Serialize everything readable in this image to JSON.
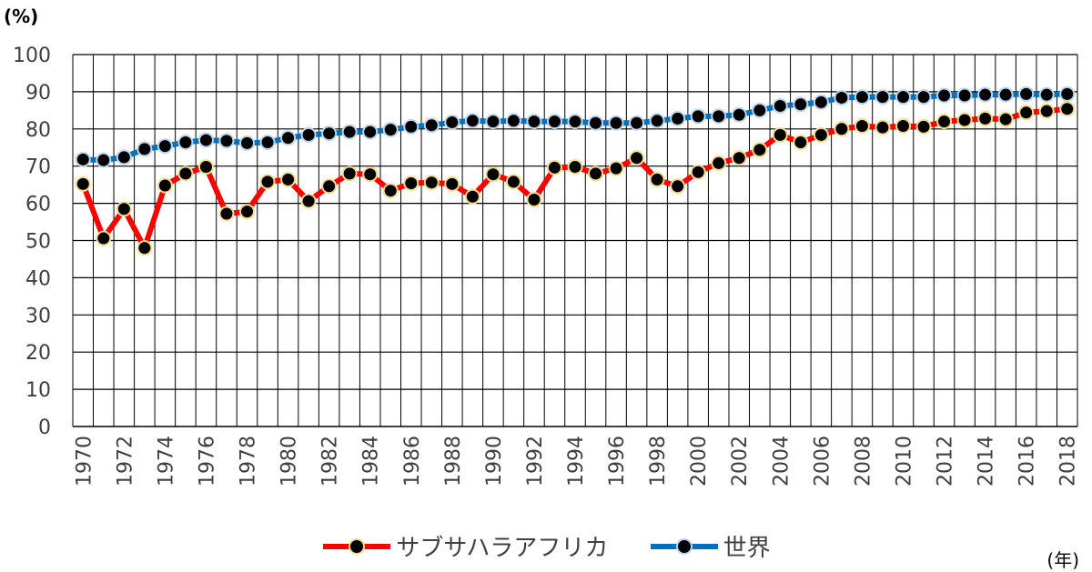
{
  "chart_data": {
    "type": "line",
    "ylabel": "(%)",
    "xlabel": "(年)",
    "ylim": [
      0,
      100
    ],
    "yticks": [
      0,
      10,
      20,
      30,
      40,
      50,
      60,
      70,
      80,
      90,
      100
    ],
    "x": [
      1970,
      1971,
      1972,
      1973,
      1974,
      1975,
      1976,
      1977,
      1978,
      1979,
      1980,
      1981,
      1982,
      1983,
      1984,
      1985,
      1986,
      1987,
      1988,
      1989,
      1990,
      1991,
      1992,
      1993,
      1994,
      1995,
      1996,
      1997,
      1998,
      1999,
      2000,
      2001,
      2002,
      2003,
      2004,
      2005,
      2006,
      2007,
      2008,
      2009,
      2010,
      2011,
      2012,
      2013,
      2014,
      2015,
      2016,
      2017,
      2018
    ],
    "xtick_labels": [
      "1970",
      "1972",
      "1974",
      "1976",
      "1978",
      "1980",
      "1982",
      "1984",
      "1986",
      "1988",
      "1990",
      "1992",
      "1994",
      "1996",
      "1998",
      "2000",
      "2002",
      "2004",
      "2006",
      "2008",
      "2010",
      "2012",
      "2014",
      "2016",
      "2018"
    ],
    "grid": true,
    "legend_position": "bottom",
    "series": [
      {
        "name": "サブサハラアフリカ",
        "color": "#ff0000",
        "values": [
          65.2,
          50.6,
          58.5,
          48.0,
          64.8,
          68.0,
          69.8,
          57.2,
          57.8,
          65.8,
          66.4,
          60.6,
          64.6,
          68.0,
          67.8,
          63.4,
          65.4,
          65.6,
          65.2,
          61.8,
          67.8,
          65.8,
          61.0,
          69.6,
          69.8,
          68.0,
          69.4,
          72.2,
          66.4,
          64.6,
          68.4,
          70.8,
          72.2,
          74.4,
          78.4,
          76.4,
          78.4,
          80.0,
          80.8,
          80.4,
          80.8,
          80.6,
          82.0,
          82.4,
          82.8,
          82.6,
          84.4,
          84.8,
          85.4
        ]
      },
      {
        "name": "世界",
        "color": "#0070c0",
        "values": [
          71.8,
          71.6,
          72.4,
          74.6,
          75.4,
          76.4,
          77.0,
          76.8,
          76.2,
          76.4,
          77.6,
          78.4,
          78.8,
          79.2,
          79.2,
          79.8,
          80.6,
          81.0,
          81.8,
          82.2,
          82.0,
          82.2,
          82.0,
          82.0,
          82.0,
          81.6,
          81.6,
          81.6,
          82.2,
          82.8,
          83.4,
          83.4,
          83.8,
          85.0,
          86.2,
          86.6,
          87.2,
          88.4,
          88.6,
          88.6,
          88.6,
          88.6,
          89.0,
          89.0,
          89.2,
          89.2,
          89.4,
          89.2,
          89.4
        ]
      }
    ]
  }
}
